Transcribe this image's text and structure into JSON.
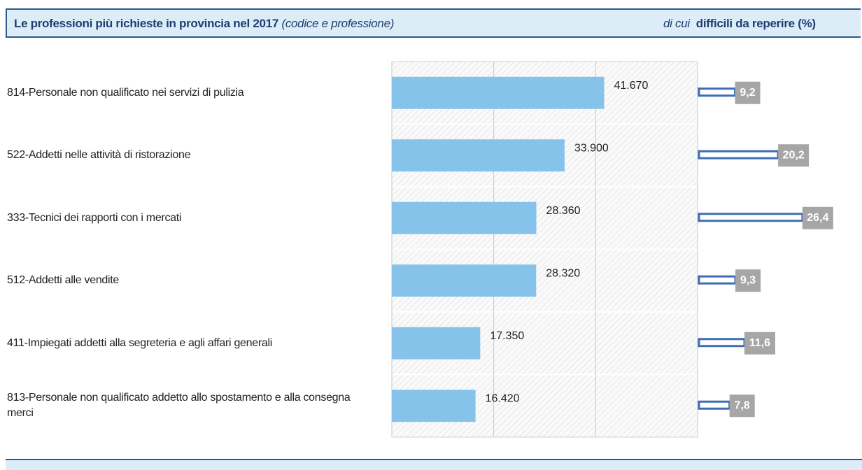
{
  "chart_data": {
    "type": "bar",
    "orientation": "horizontal",
    "title": "Le professioni più richieste in provincia nel 2017",
    "title_note": "(codice e professione)",
    "right_title_prefix": "di cui",
    "right_title": "difficili da reperire (%)",
    "categories": [
      "814-Personale non qualificato nei servizi di pulizia",
      "522-Addetti nelle attività di ristorazione",
      "333-Tecnici dei rapporti con i mercati",
      "512-Addetti alle vendite",
      "411-Impiegati addetti alla segreteria e agli affari generali",
      "813-Personale non qualificato addetto allo spostamento e alla consegna merci"
    ],
    "values": [
      41670,
      33900,
      28360,
      28320,
      17350,
      16420
    ],
    "value_labels": [
      "41.670",
      "33.900",
      "28.360",
      "28.320",
      "17.350",
      "16.420"
    ],
    "color": "#85c3ea",
    "xlim": [
      0,
      60000
    ],
    "xticks": [
      0,
      20000,
      40000,
      60000
    ],
    "grid": true,
    "difficult": {
      "values": [
        9.2,
        20.2,
        26.4,
        9.3,
        11.6,
        7.8
      ],
      "value_labels": [
        "9,2",
        "20,2",
        "26,4",
        "9,3",
        "11,6",
        "7,8"
      ],
      "color": "#3e6db5",
      "xlim": [
        0,
        30
      ]
    }
  }
}
